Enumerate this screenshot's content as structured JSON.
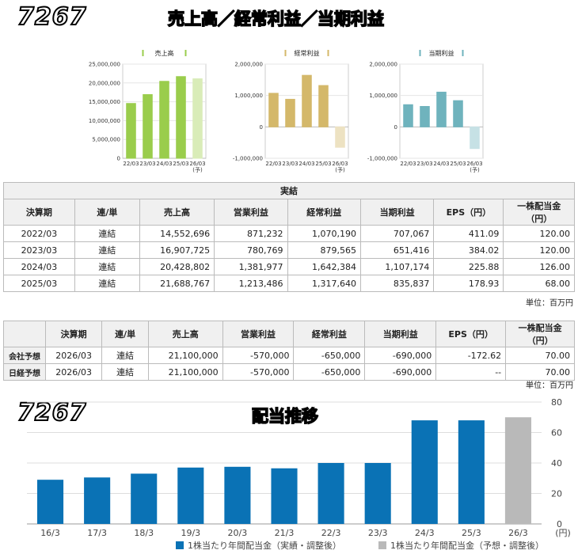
{
  "header": {
    "code": "7267",
    "title": "売上高／経常利益／当期利益"
  },
  "chart_data": [
    {
      "type": "bar",
      "title": "売上高",
      "categories": [
        "22/03",
        "23/03",
        "24/03",
        "25/03",
        "26/03"
      ],
      "sub_labels": [
        "",
        "",
        "",
        "",
        "(予)"
      ],
      "values": [
        14552696,
        16907725,
        20428802,
        21688767,
        21100000
      ],
      "forecast_index": 4,
      "ylim": [
        0,
        25000000
      ],
      "yticks": [
        "25,000,000",
        "20,000,000",
        "15,000,000",
        "10,000,000",
        "5,000,000",
        "0"
      ],
      "ytick_values": [
        25000000,
        20000000,
        15000000,
        10000000,
        5000000,
        0
      ],
      "color": "#9acd4c",
      "forecast_color": "#d9ecb8"
    },
    {
      "type": "bar",
      "title": "経常利益",
      "categories": [
        "22/03",
        "23/03",
        "24/03",
        "25/03",
        "26/03"
      ],
      "sub_labels": [
        "",
        "",
        "",
        "",
        "(予)"
      ],
      "values": [
        1070190,
        879565,
        1642384,
        1317640,
        -650000
      ],
      "forecast_index": 4,
      "ylim": [
        -1000000,
        2000000
      ],
      "yticks": [
        "2,000,000",
        "1,000,000",
        "0",
        "-1,000,000"
      ],
      "ytick_values": [
        2000000,
        1000000,
        0,
        -1000000
      ],
      "color": "#d4b86a",
      "forecast_color": "#ede2c2"
    },
    {
      "type": "bar",
      "title": "当期利益",
      "categories": [
        "22/03",
        "23/03",
        "24/03",
        "25/03",
        "26/03"
      ],
      "sub_labels": [
        "",
        "",
        "",
        "",
        "(予)"
      ],
      "values": [
        707067,
        651416,
        1107174,
        835837,
        -690000
      ],
      "forecast_index": 4,
      "ylim": [
        -1000000,
        2000000
      ],
      "yticks": [
        "2,000,000",
        "1,000,000",
        "0",
        "-1,000,000"
      ],
      "ytick_values": [
        2000000,
        1000000,
        0,
        -1000000
      ],
      "color": "#6fb3bd",
      "forecast_color": "#c6e1e5"
    },
    {
      "type": "bar",
      "title": "配当推移",
      "categories": [
        "16/3",
        "17/3",
        "18/3",
        "19/3",
        "20/3",
        "21/3",
        "22/3",
        "23/3",
        "24/3",
        "25/3",
        "26/3"
      ],
      "values": [
        29,
        30.5,
        33,
        37,
        37.5,
        36.5,
        40,
        40,
        68,
        68,
        70
      ],
      "forecast_index": 10,
      "ylim": [
        0,
        80
      ],
      "yticks": [
        "80",
        "60",
        "40",
        "20",
        "0"
      ],
      "ytick_values": [
        80,
        60,
        40,
        20,
        0
      ],
      "yunit": "(円)",
      "color": "#0a72b5",
      "forecast_color": "#b9b9b9",
      "legend": [
        "1株当たり年間配当金（実績・調整後）",
        "1株当たり年間配当金（予想・調整後）"
      ]
    }
  ],
  "results_table": {
    "group_header": "実結",
    "headers": [
      "決算期",
      "連/単",
      "売上高",
      "営業利益",
      "経常利益",
      "当期利益",
      "EPS（円）",
      "一株配当金（円）"
    ],
    "rows": [
      [
        "2022/03",
        "連結",
        "14,552,696",
        "871,232",
        "1,070,190",
        "707,067",
        "411.09",
        "120.00"
      ],
      [
        "2023/03",
        "連結",
        "16,907,725",
        "780,769",
        "879,565",
        "651,416",
        "384.02",
        "120.00"
      ],
      [
        "2024/03",
        "連結",
        "20,428,802",
        "1,381,977",
        "1,642,384",
        "1,107,174",
        "225.88",
        "126.00"
      ],
      [
        "2025/03",
        "連結",
        "21,688,767",
        "1,213,486",
        "1,317,640",
        "835,837",
        "178.93",
        "68.00"
      ]
    ],
    "unit": "単位：百万円"
  },
  "forecast_table": {
    "headers": [
      "",
      "決算期",
      "連/単",
      "売上高",
      "営業利益",
      "経常利益",
      "当期利益",
      "EPS（円）",
      "一株配当金（円）"
    ],
    "rows": [
      [
        "会社予想",
        "2026/03",
        "連結",
        "21,100,000",
        "-570,000",
        "-650,000",
        "-690,000",
        "-172.62",
        "70.00"
      ],
      [
        "日経予想",
        "2026/03",
        "連結",
        "21,100,000",
        "-570,000",
        "-650,000",
        "-690,000",
        "--",
        "70.00"
      ]
    ],
    "unit": "単位：百万円"
  },
  "dividend_header": {
    "code": "7267",
    "title": "配当推移"
  }
}
